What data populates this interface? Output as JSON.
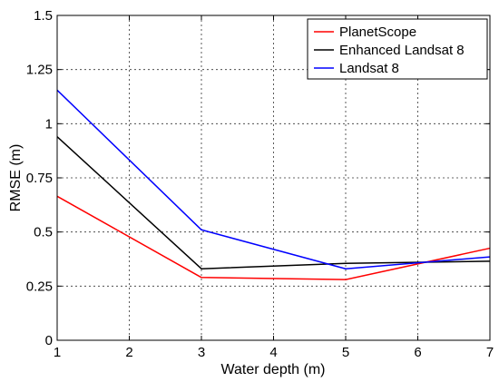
{
  "chart_data": {
    "type": "line",
    "xlabel": "Water depth (m)",
    "ylabel": "RMSE (m)",
    "xlim": [
      1,
      7
    ],
    "ylim": [
      0,
      1.5
    ],
    "x_ticks": [
      1,
      2,
      3,
      4,
      5,
      6,
      7
    ],
    "y_ticks": [
      0,
      0.25,
      0.5,
      0.75,
      1,
      1.25,
      1.5
    ],
    "x_tick_labels": [
      "1",
      "2",
      "3",
      "4",
      "5",
      "6",
      "7"
    ],
    "y_tick_labels": [
      "0",
      "0.25",
      "0.5",
      "0.75",
      "1",
      "1.25",
      "1.5"
    ],
    "grid": true,
    "legend_position": "top-right",
    "x": [
      1,
      3,
      5,
      7
    ],
    "series": [
      {
        "name": "PlanetScope",
        "color": "#ff0000",
        "values": [
          0.665,
          0.29,
          0.28,
          0.425
        ]
      },
      {
        "name": "Enhanced Landsat 8",
        "color": "#000000",
        "values": [
          0.94,
          0.33,
          0.355,
          0.365
        ]
      },
      {
        "name": "Landsat 8",
        "color": "#0000ff",
        "values": [
          1.155,
          0.51,
          0.33,
          0.385
        ]
      }
    ]
  }
}
